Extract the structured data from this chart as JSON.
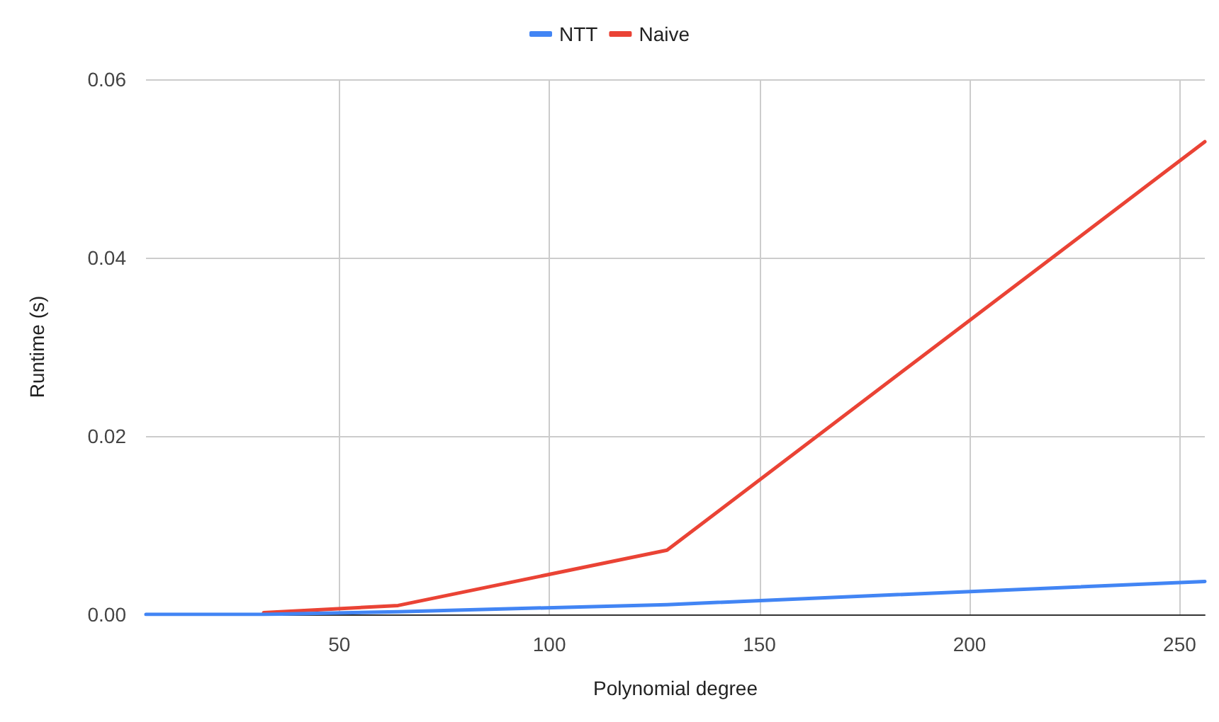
{
  "chart_data": {
    "type": "line",
    "xlabel": "Polynomial degree",
    "ylabel": "Runtime (s)",
    "x": [
      4,
      8,
      16,
      32,
      64,
      128,
      256
    ],
    "series": [
      {
        "name": "NTT",
        "color": "#4285f4",
        "values": [
          0,
          0,
          0,
          0,
          0.0003,
          0.0011,
          0.0037
        ]
      },
      {
        "name": "Naive",
        "color": "#ea4335",
        "values": [
          null,
          null,
          null,
          0.0002,
          0.001,
          0.0072,
          0.053
        ]
      }
    ],
    "xlim": [
      4,
      256
    ],
    "xticks": [
      50,
      100,
      150,
      200,
      250
    ],
    "ylim": [
      0,
      0.06
    ],
    "yticks": [
      {
        "value": 0,
        "label": "0.00"
      },
      {
        "value": 0.02,
        "label": "0.02"
      },
      {
        "value": 0.04,
        "label": "0.04"
      },
      {
        "value": 0.06,
        "label": "0.06"
      }
    ],
    "grid": true,
    "legend": "top",
    "marker": "none",
    "line_style": "solid"
  }
}
